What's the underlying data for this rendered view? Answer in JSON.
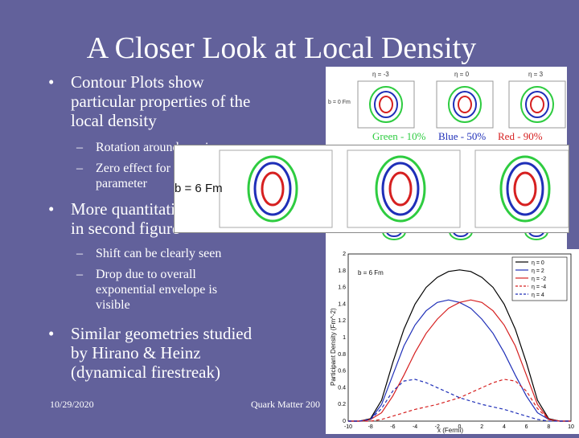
{
  "slide": {
    "title": "A Closer Look at Local Density",
    "bullets": [
      {
        "text_lines": [
          "Contour Plots show",
          "particular properties of the",
          "local density"
        ]
      },
      {
        "text_lines": [
          "More quantitative",
          "in second figure"
        ]
      },
      {
        "text_lines": [
          "Similar geometries studied",
          "by Hirano & Heinz",
          "(dynamical firestreak)"
        ]
      }
    ],
    "sub_bullets_1": [
      {
        "text_lines": [
          "Rotation around y-axis"
        ]
      },
      {
        "text_lines": [
          "Zero effect for b",
          "parameter"
        ]
      }
    ],
    "sub_bullets_2": [
      {
        "text_lines": [
          "Shift can be clearly seen"
        ]
      },
      {
        "text_lines": [
          "Drop due to overall",
          "exponential envelope is",
          "visible"
        ]
      }
    ],
    "footer_date": "10/29/2020",
    "footer_conf": "Quark Matter 200"
  },
  "contour_top": {
    "b_label": "b = 0 Fm",
    "eta_labels": [
      "η = -3",
      "η = 0",
      "η = 3"
    ]
  },
  "legend": {
    "green": "Green - 10%",
    "blue": "Blue - 50%",
    "red": "Red - 90%",
    "colors": {
      "green": "#2ecc40",
      "blue": "#1f2fb8",
      "red": "#d62020"
    }
  },
  "contour_zoom": {
    "b_label": "b = 6 Fm"
  },
  "chart_data": {
    "type": "line",
    "title": "",
    "xlabel": "x (Fermi)",
    "ylabel": "Participant Density (Fm^-2)",
    "annotation": "b = 6 Fm",
    "xlim": [
      -10,
      10
    ],
    "ylim": [
      0,
      2
    ],
    "xticks": [
      "-10",
      "-8",
      "-6",
      "-4",
      "-2",
      "0",
      "2",
      "4",
      "6",
      "8",
      "10"
    ],
    "yticks": [
      "0",
      "0.2",
      "0.4",
      "0.6",
      "0.8",
      "1",
      "1.2",
      "1.4",
      "1.6",
      "1.8",
      "2"
    ],
    "x": [
      -10,
      -9,
      -8,
      -7,
      -6,
      -5,
      -4,
      -3,
      -2,
      -1,
      0,
      1,
      2,
      3,
      4,
      5,
      6,
      7,
      8,
      9,
      10
    ],
    "series": [
      {
        "name": "η = 0",
        "color": "#000000",
        "dash": false,
        "values": [
          0,
          0,
          0.03,
          0.25,
          0.7,
          1.1,
          1.4,
          1.6,
          1.72,
          1.79,
          1.81,
          1.79,
          1.72,
          1.6,
          1.4,
          1.1,
          0.7,
          0.25,
          0.03,
          0,
          0
        ]
      },
      {
        "name": "η = 2",
        "color": "#1f2fb8",
        "dash": false,
        "values": [
          0,
          0,
          0.02,
          0.2,
          0.55,
          0.9,
          1.15,
          1.32,
          1.42,
          1.45,
          1.42,
          1.35,
          1.22,
          1.05,
          0.82,
          0.55,
          0.3,
          0.1,
          0.02,
          0,
          0
        ]
      },
      {
        "name": "η = -2",
        "color": "#d62020",
        "dash": false,
        "values": [
          0,
          0,
          0.02,
          0.1,
          0.3,
          0.55,
          0.82,
          1.05,
          1.22,
          1.35,
          1.42,
          1.45,
          1.42,
          1.32,
          1.15,
          0.9,
          0.55,
          0.2,
          0.02,
          0,
          0
        ]
      },
      {
        "name": "η = -4",
        "color": "#d62020",
        "dash": true,
        "values": [
          0,
          0,
          0,
          0.02,
          0.06,
          0.1,
          0.14,
          0.17,
          0.2,
          0.24,
          0.28,
          0.34,
          0.4,
          0.46,
          0.5,
          0.48,
          0.36,
          0.15,
          0.02,
          0,
          0
        ]
      },
      {
        "name": "η = 4",
        "color": "#1f2fb8",
        "dash": true,
        "values": [
          0,
          0,
          0.02,
          0.15,
          0.36,
          0.48,
          0.5,
          0.46,
          0.4,
          0.34,
          0.28,
          0.24,
          0.2,
          0.17,
          0.14,
          0.1,
          0.06,
          0.02,
          0,
          0,
          0
        ]
      }
    ],
    "legend_position": "top-right"
  }
}
